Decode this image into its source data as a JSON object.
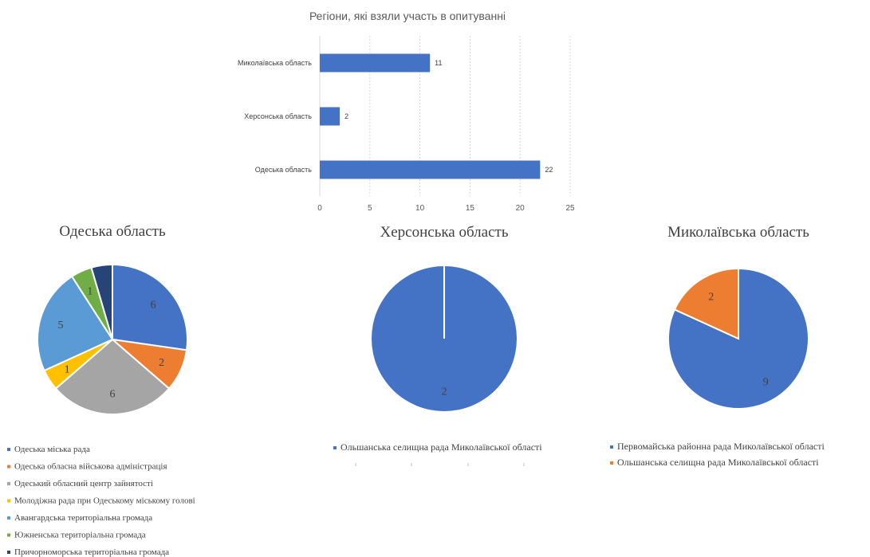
{
  "chart_data": [
    {
      "type": "bar",
      "orientation": "horizontal",
      "title": "Регіони, які взяли участь в опитуванні",
      "categories": [
        "Миколаївська область",
        "Херсонська область",
        "Одеська область"
      ],
      "values": [
        11,
        2,
        22
      ],
      "data_labels": [
        "11",
        "2",
        "22"
      ],
      "xlim": [
        0,
        25
      ],
      "x_ticks": [
        "0",
        "5",
        "10",
        "15",
        "20",
        "25"
      ],
      "grid": true,
      "color": "#4472C4"
    },
    {
      "type": "pie",
      "title": "Одеська область",
      "slices": [
        {
          "label": "Одеська міська рада",
          "value": 6,
          "color": "#4472C4"
        },
        {
          "label": "Одеська обласна військова адміністрація",
          "value": 2,
          "color": "#ED7D31"
        },
        {
          "label": "Одеський обласний центр зайнятості",
          "value": 6,
          "color": "#A5A5A5"
        },
        {
          "label": "Молодіжна рада при Одеському міському голові",
          "value": 1,
          "color": "#FFC000"
        },
        {
          "label": "Авангардська територіальна громада",
          "value": 5,
          "color": "#5B9BD5"
        },
        {
          "label": "Южненська територіальна громада",
          "value": 1,
          "color": "#70AD47"
        },
        {
          "label": "Причорноморська територіальна громада",
          "value": 1,
          "color": "#264478"
        }
      ],
      "legend": "bottom"
    },
    {
      "type": "pie",
      "title": "Херсонська область",
      "slices": [
        {
          "label": "Ольшанська селищна рада Миколаївської області",
          "value": 2,
          "color": "#4472C4"
        }
      ],
      "legend": "bottom"
    },
    {
      "type": "pie",
      "title": "Миколаївська область",
      "slices": [
        {
          "label": "Первомайська  районна рада  Миколаївської області",
          "value": 9,
          "color": "#4472C4"
        },
        {
          "label": "Ольшанська селищна рада Миколаївської області",
          "value": 2,
          "color": "#ED7D31"
        }
      ],
      "legend": "bottom"
    }
  ]
}
